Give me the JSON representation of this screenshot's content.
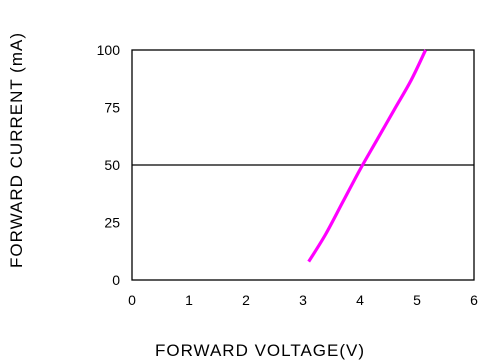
{
  "chart_data": {
    "type": "line",
    "title": "",
    "xlabel": "FORWARD VOLTAGE(V)",
    "ylabel": "FORWARD CURRENT (mA)",
    "xlim": [
      0,
      6
    ],
    "ylim": [
      0,
      100
    ],
    "xticks": [
      0,
      1,
      2,
      3,
      4,
      5,
      6
    ],
    "yticks": [
      0,
      25,
      50,
      75,
      100
    ],
    "xtick_labels": [
      "0",
      "1",
      "2",
      "3",
      "4",
      "5",
      "6"
    ],
    "ytick_labels": [
      "0",
      "25",
      "50",
      "75",
      "100"
    ],
    "reference_lines": [
      {
        "axis": "y",
        "value": 50
      }
    ],
    "grid": false,
    "series": [
      {
        "color": "#ff00ff",
        "points": [
          {
            "x": 3.1,
            "y": 8
          },
          {
            "x": 3.4,
            "y": 20
          },
          {
            "x": 3.7,
            "y": 34
          },
          {
            "x": 4.0,
            "y": 48
          },
          {
            "x": 4.3,
            "y": 61
          },
          {
            "x": 4.6,
            "y": 74
          },
          {
            "x": 4.9,
            "y": 87
          },
          {
            "x": 5.15,
            "y": 100
          }
        ]
      }
    ]
  }
}
